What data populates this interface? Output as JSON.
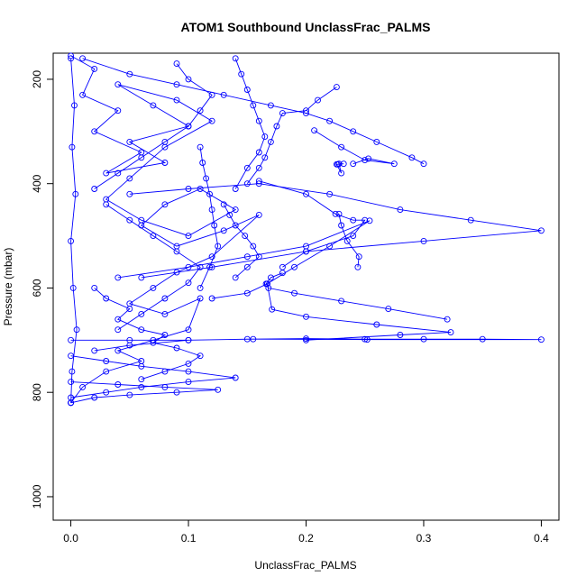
{
  "chart_data": {
    "type": "line",
    "title": "ATOM1 Southbound UnclassFrac_PALMS",
    "xlabel": "UnclassFrac_PALMS",
    "ylabel": "Pressure (mbar)",
    "xlim": [
      -0.015,
      0.415
    ],
    "ylim": [
      1045,
      150
    ],
    "y_reversed": true,
    "x_ticks": [
      0.0,
      0.1,
      0.2,
      0.3,
      0.4
    ],
    "x_tick_labels": [
      "0.0",
      "0.1",
      "0.2",
      "0.3",
      "0.4"
    ],
    "y_ticks": [
      200,
      400,
      600,
      800,
      1000
    ],
    "y_tick_labels": [
      "200",
      "400",
      "600",
      "800",
      "1000"
    ],
    "grid": false,
    "legend": "none",
    "series_color": "#0000ff",
    "marker": "open-circle",
    "series": [
      {
        "x": [
          0.0,
          0.02,
          0.01,
          0.04,
          0.02,
          0.06,
          0.03,
          0.08,
          0.05,
          0.1,
          0.07,
          0.04,
          0.09,
          0.12,
          0.08,
          0.05,
          0.03,
          0.06,
          0.1,
          0.14,
          0.11,
          0.08,
          0.06,
          0.09,
          0.13,
          0.16,
          0.12,
          0.09,
          0.07,
          0.05,
          0.08,
          0.11,
          0.1,
          0.07,
          0.04,
          0.06,
          0.03,
          0.01,
          0.0
        ],
        "y": [
          155,
          180,
          230,
          260,
          300,
          340,
          380,
          360,
          320,
          290,
          250,
          210,
          240,
          280,
          330,
          390,
          430,
          470,
          500,
          450,
          410,
          440,
          480,
          520,
          490,
          460,
          540,
          570,
          600,
          630,
          650,
          620,
          680,
          700,
          720,
          740,
          760,
          790,
          820
        ]
      },
      {
        "x": [
          0.01,
          0.05,
          0.09,
          0.13,
          0.17,
          0.2,
          0.22,
          0.24,
          0.26,
          0.29,
          0.3
        ],
        "y": [
          160,
          190,
          210,
          230,
          250,
          265,
          280,
          300,
          320,
          350,
          362
        ]
      },
      {
        "x": [
          0.226,
          0.21,
          0.2,
          0.18,
          0.175,
          0.17,
          0.165,
          0.16,
          0.15
        ],
        "y": [
          215,
          240,
          260,
          265,
          290,
          320,
          350,
          370,
          400
        ]
      },
      {
        "x": [
          0.207,
          0.23,
          0.25,
          0.275,
          0.253,
          0.24
        ],
        "y": [
          298,
          330,
          355,
          362,
          352,
          362
        ]
      },
      {
        "x": [
          0.227,
          0.228,
          0.23,
          0.226,
          0.232
        ],
        "y": [
          363,
          362,
          380,
          363,
          362
        ]
      },
      {
        "x": [
          0.05,
          0.1,
          0.16,
          0.22,
          0.28,
          0.34,
          0.4,
          0.3,
          0.2,
          0.12,
          0.06
        ],
        "y": [
          420,
          410,
          400,
          420,
          450,
          470,
          490,
          510,
          530,
          560,
          580
        ]
      },
      {
        "x": [
          0.16,
          0.2,
          0.225,
          0.24,
          0.25,
          0.24,
          0.2,
          0.18
        ],
        "y": [
          395,
          420,
          458,
          470,
          470,
          500,
          530,
          560
        ]
      },
      {
        "x": [
          0.04,
          0.1,
          0.15,
          0.2,
          0.254,
          0.22,
          0.19,
          0.167,
          0.15,
          0.12
        ],
        "y": [
          580,
          560,
          540,
          520,
          471,
          520,
          560,
          592,
          610,
          620
        ]
      },
      {
        "x": [
          0.228,
          0.23,
          0.235,
          0.245,
          0.244
        ],
        "y": [
          458,
          480,
          510,
          540,
          560
        ]
      },
      {
        "x": [
          0.18,
          0.17,
          0.166,
          0.168,
          0.19,
          0.23,
          0.27,
          0.32
        ],
        "y": [
          571,
          580,
          592,
          600,
          610,
          625,
          640,
          660
        ]
      },
      {
        "x": [
          0.167,
          0.171,
          0.2,
          0.26,
          0.323,
          0.28,
          0.2
        ],
        "y": [
          592,
          641,
          655,
          670,
          685,
          690,
          700
        ]
      },
      {
        "x": [
          0.0,
          0.05,
          0.1,
          0.15,
          0.2,
          0.25,
          0.3,
          0.35,
          0.4,
          0.252,
          0.155,
          0.1,
          0.05,
          0.02
        ],
        "y": [
          700,
          700,
          700,
          698,
          697,
          698,
          698,
          698,
          699,
          699,
          698,
          700,
          710,
          720
        ]
      },
      {
        "x": [
          0.0,
          0.03,
          0.06,
          0.1,
          0.14,
          0.1,
          0.06,
          0.03,
          0.0
        ],
        "y": [
          730,
          740,
          750,
          760,
          772,
          780,
          790,
          800,
          810
        ]
      },
      {
        "x": [
          0.0,
          0.04,
          0.08,
          0.125,
          0.09,
          0.05,
          0.02,
          0.0
        ],
        "y": [
          780,
          785,
          790,
          795,
          800,
          805,
          810,
          820
        ]
      },
      {
        "x": [
          0.0,
          0.003,
          0.001,
          0.004,
          0.0,
          0.002,
          0.005,
          0.001,
          0.0
        ],
        "y": [
          160,
          250,
          330,
          420,
          510,
          600,
          680,
          760,
          820
        ]
      },
      {
        "x": [
          0.11,
          0.112,
          0.115,
          0.118,
          0.12,
          0.122,
          0.125,
          0.118,
          0.11
        ],
        "y": [
          330,
          360,
          390,
          420,
          450,
          480,
          520,
          560,
          600
        ]
      },
      {
        "x": [
          0.14,
          0.145,
          0.15,
          0.155,
          0.16,
          0.165,
          0.16,
          0.15,
          0.14
        ],
        "y": [
          160,
          190,
          220,
          250,
          280,
          310,
          340,
          370,
          410
        ]
      },
      {
        "x": [
          0.13,
          0.135,
          0.14,
          0.148,
          0.155,
          0.16,
          0.15,
          0.14
        ],
        "y": [
          440,
          460,
          480,
          500,
          520,
          540,
          560,
          580
        ]
      },
      {
        "x": [
          0.02,
          0.03,
          0.05,
          0.04,
          0.06,
          0.08,
          0.07,
          0.09,
          0.11,
          0.1,
          0.08,
          0.06
        ],
        "y": [
          600,
          620,
          640,
          660,
          680,
          690,
          705,
          715,
          730,
          745,
          760,
          775
        ]
      },
      {
        "x": [
          0.09,
          0.1,
          0.12,
          0.11,
          0.1,
          0.08,
          0.06,
          0.04,
          0.02
        ],
        "y": [
          170,
          200,
          230,
          260,
          290,
          320,
          350,
          380,
          410
        ]
      },
      {
        "x": [
          0.03,
          0.05,
          0.07,
          0.09,
          0.11,
          0.1,
          0.08,
          0.06,
          0.04
        ],
        "y": [
          440,
          470,
          500,
          530,
          560,
          590,
          620,
          650,
          680
        ]
      }
    ]
  }
}
